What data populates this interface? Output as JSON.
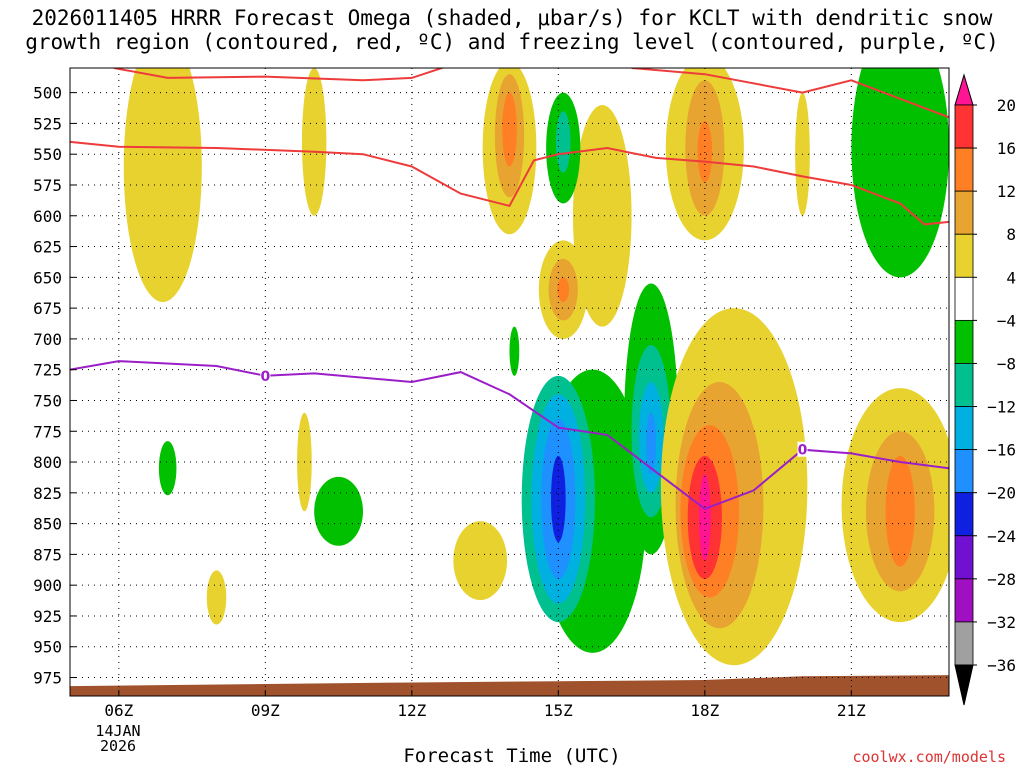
{
  "chart_data": {
    "type": "contour",
    "title_line1": "2026011405 HRRR Forecast Omega (shaded, μbar/s) for KCLT with dendritic snow",
    "title_line2": "growth region (contoured, red, ºC) and freezing level (contoured, purple, ºC)",
    "xlabel": "Forecast Time (UTC)",
    "credit": "coolwx.com/models",
    "x_ticks": [
      {
        "hour": 6,
        "label": "06Z"
      },
      {
        "hour": 9,
        "label": "09Z"
      },
      {
        "hour": 12,
        "label": "12Z"
      },
      {
        "hour": 15,
        "label": "15Z"
      },
      {
        "hour": 18,
        "label": "18Z"
      },
      {
        "hour": 21,
        "label": "21Z"
      }
    ],
    "date_label": [
      "14JAN",
      "2026"
    ],
    "x_range_hours": [
      5.0,
      23.0
    ],
    "y_ticks_hpa": [
      500,
      525,
      550,
      575,
      600,
      625,
      650,
      675,
      700,
      725,
      750,
      775,
      800,
      825,
      850,
      875,
      900,
      925,
      950,
      975
    ],
    "y_range_hpa": [
      480,
      990
    ],
    "colorbar": {
      "levels": [
        "20",
        "16",
        "12",
        "8",
        "4",
        "−4",
        "−8",
        "−12",
        "−16",
        "−20",
        "−24",
        "−28",
        "−32",
        "−36"
      ],
      "colors": [
        "#ff1493",
        "#ff3333",
        "#ff7f24",
        "#e8a430",
        "#e8d230",
        "#ffffff",
        "#00c000",
        "#00c090",
        "#00b0e0",
        "#1e90ff",
        "#1020e0",
        "#7010d0",
        "#a010c0",
        "#a0a0a0",
        "#000000"
      ]
    },
    "dgz_lines": [
      {
        "name": "upper -18C",
        "points": [
          [
            5.9,
            480
          ],
          [
            7.0,
            488
          ],
          [
            9.0,
            487
          ],
          [
            11.0,
            490
          ],
          [
            12.0,
            488
          ],
          [
            13.0,
            475
          ]
        ]
      },
      {
        "name": "upper -18C late",
        "points": [
          [
            16.5,
            480
          ],
          [
            18.0,
            485
          ],
          [
            20.0,
            500
          ],
          [
            21.0,
            490
          ],
          [
            23.0,
            520
          ]
        ]
      },
      {
        "name": "lower -12C",
        "points": [
          [
            5.0,
            540
          ],
          [
            6.0,
            544
          ],
          [
            8.0,
            545
          ],
          [
            10.0,
            548
          ],
          [
            11.0,
            550
          ],
          [
            12.0,
            560
          ],
          [
            13.0,
            582
          ],
          [
            14.0,
            592
          ],
          [
            14.5,
            555
          ],
          [
            15.0,
            550
          ],
          [
            16.0,
            545
          ],
          [
            17.0,
            553
          ],
          [
            18.0,
            556
          ],
          [
            19.0,
            560
          ],
          [
            20.0,
            568
          ],
          [
            21.0,
            575
          ],
          [
            22.0,
            590
          ],
          [
            22.5,
            607
          ],
          [
            23.0,
            605
          ]
        ]
      }
    ],
    "freezing_level": {
      "label": "0",
      "points": [
        [
          5.0,
          725
        ],
        [
          6.0,
          718
        ],
        [
          8.0,
          722
        ],
        [
          9.0,
          730
        ],
        [
          10.0,
          728
        ],
        [
          12.0,
          735
        ],
        [
          13.0,
          727
        ],
        [
          14.0,
          745
        ],
        [
          15.0,
          772
        ],
        [
          16.0,
          778
        ],
        [
          17.0,
          808
        ],
        [
          18.0,
          838
        ],
        [
          19.0,
          823
        ],
        [
          20.0,
          790
        ],
        [
          21.0,
          793
        ],
        [
          22.0,
          800
        ],
        [
          23.0,
          805
        ]
      ]
    },
    "surface_color": "#a0522d",
    "omega_regions": [
      {
        "level": 4,
        "center_hour": 6.9,
        "center_hpa": 560,
        "half_width_hours": 0.8,
        "half_depth_hpa": 110,
        "color": "#e8d230"
      },
      {
        "level": 4,
        "center_hour": 10.0,
        "center_hpa": 540,
        "half_width_hours": 0.25,
        "half_depth_hpa": 60,
        "color": "#e8d230"
      },
      {
        "level": 4,
        "center_hour": 14.0,
        "center_hpa": 545,
        "half_width_hours": 0.55,
        "half_depth_hpa": 70,
        "color": "#e8d230"
      },
      {
        "level": 8,
        "center_hour": 14.0,
        "center_hpa": 535,
        "half_width_hours": 0.3,
        "half_depth_hpa": 50,
        "color": "#e8a430"
      },
      {
        "level": 12,
        "center_hour": 14.0,
        "center_hpa": 530,
        "half_width_hours": 0.15,
        "half_depth_hpa": 30,
        "color": "#ff7f24"
      },
      {
        "level": 4,
        "center_hour": 15.9,
        "center_hpa": 600,
        "half_width_hours": 0.6,
        "half_depth_hpa": 90,
        "color": "#e8d230"
      },
      {
        "level": 4,
        "center_hour": 15.1,
        "center_hpa": 660,
        "half_width_hours": 0.5,
        "half_depth_hpa": 40,
        "color": "#e8d230"
      },
      {
        "level": 8,
        "center_hour": 15.1,
        "center_hpa": 660,
        "half_width_hours": 0.3,
        "half_depth_hpa": 25,
        "color": "#e8a430"
      },
      {
        "level": 12,
        "center_hour": 15.1,
        "center_hpa": 660,
        "half_width_hours": 0.12,
        "half_depth_hpa": 10,
        "color": "#ff7f24"
      },
      {
        "level": -4,
        "center_hour": 15.1,
        "center_hpa": 545,
        "half_width_hours": 0.35,
        "half_depth_hpa": 45,
        "color": "#00c000"
      },
      {
        "level": -8,
        "center_hour": 15.1,
        "center_hpa": 540,
        "half_width_hours": 0.15,
        "half_depth_hpa": 25,
        "color": "#00c090"
      },
      {
        "level": 4,
        "center_hour": 18.0,
        "center_hpa": 545,
        "half_width_hours": 0.8,
        "half_depth_hpa": 75,
        "color": "#e8d230"
      },
      {
        "level": 8,
        "center_hour": 18.0,
        "center_hpa": 545,
        "half_width_hours": 0.4,
        "half_depth_hpa": 55,
        "color": "#e8a430"
      },
      {
        "level": 12,
        "center_hour": 18.0,
        "center_hpa": 548,
        "half_width_hours": 0.15,
        "half_depth_hpa": 25,
        "color": "#ff7f24"
      },
      {
        "level": 4,
        "center_hour": 20.0,
        "center_hpa": 550,
        "half_width_hours": 0.15,
        "half_depth_hpa": 50,
        "color": "#e8d230"
      },
      {
        "level": -4,
        "center_hour": 22.0,
        "center_hpa": 545,
        "half_width_hours": 1.0,
        "half_depth_hpa": 105,
        "color": "#00c000"
      },
      {
        "level": 4,
        "center_hour": 9.8,
        "center_hpa": 800,
        "half_width_hours": 0.15,
        "half_depth_hpa": 40,
        "color": "#e8d230"
      },
      {
        "level": -4,
        "center_hour": 7.0,
        "center_hpa": 805,
        "half_width_hours": 0.18,
        "half_depth_hpa": 22,
        "color": "#00c000"
      },
      {
        "level": -4,
        "center_hour": 10.5,
        "center_hpa": 840,
        "half_width_hours": 0.5,
        "half_depth_hpa": 28,
        "color": "#00c000"
      },
      {
        "level": 4,
        "center_hour": 8.0,
        "center_hpa": 910,
        "half_width_hours": 0.2,
        "half_depth_hpa": 22,
        "color": "#e8d230"
      },
      {
        "level": 4,
        "center_hour": 13.4,
        "center_hpa": 880,
        "half_width_hours": 0.55,
        "half_depth_hpa": 32,
        "color": "#e8d230"
      },
      {
        "level": -4,
        "center_hour": 14.1,
        "center_hpa": 710,
        "half_width_hours": 0.1,
        "half_depth_hpa": 20,
        "color": "#00c000"
      },
      {
        "level": -4,
        "center_hour": 15.7,
        "center_hpa": 840,
        "half_width_hours": 1.1,
        "half_depth_hpa": 115,
        "color": "#00c000"
      },
      {
        "level": -8,
        "center_hour": 15.0,
        "center_hpa": 830,
        "half_width_hours": 0.75,
        "half_depth_hpa": 100,
        "color": "#00c090"
      },
      {
        "level": -12,
        "center_hour": 15.0,
        "center_hpa": 830,
        "half_width_hours": 0.55,
        "half_depth_hpa": 85,
        "color": "#00b0e0"
      },
      {
        "level": -16,
        "center_hour": 15.0,
        "center_hpa": 830,
        "half_width_hours": 0.35,
        "half_depth_hpa": 65,
        "color": "#1e90ff"
      },
      {
        "level": -20,
        "center_hour": 15.0,
        "center_hpa": 830,
        "half_width_hours": 0.15,
        "half_depth_hpa": 35,
        "color": "#1020e0"
      },
      {
        "level": -4,
        "center_hour": 16.9,
        "center_hpa": 765,
        "half_width_hours": 0.55,
        "half_depth_hpa": 110,
        "color": "#00c000"
      },
      {
        "level": -8,
        "center_hour": 16.9,
        "center_hpa": 775,
        "half_width_hours": 0.4,
        "half_depth_hpa": 70,
        "color": "#00c090"
      },
      {
        "level": -12,
        "center_hour": 16.9,
        "center_hpa": 780,
        "half_width_hours": 0.25,
        "half_depth_hpa": 45,
        "color": "#00b0e0"
      },
      {
        "level": -16,
        "center_hour": 16.9,
        "center_hpa": 785,
        "half_width_hours": 0.1,
        "half_depth_hpa": 25,
        "color": "#1e90ff"
      },
      {
        "level": 4,
        "center_hour": 18.6,
        "center_hpa": 820,
        "half_width_hours": 1.5,
        "half_depth_hpa": 145,
        "color": "#e8d230"
      },
      {
        "level": 8,
        "center_hour": 18.3,
        "center_hpa": 835,
        "half_width_hours": 0.9,
        "half_depth_hpa": 100,
        "color": "#e8a430"
      },
      {
        "level": 12,
        "center_hour": 18.1,
        "center_hpa": 840,
        "half_width_hours": 0.6,
        "half_depth_hpa": 70,
        "color": "#ff7f24"
      },
      {
        "level": 16,
        "center_hour": 18.0,
        "center_hpa": 845,
        "half_width_hours": 0.35,
        "half_depth_hpa": 50,
        "color": "#ff3333"
      },
      {
        "level": 20,
        "center_hour": 18.0,
        "center_hpa": 845,
        "half_width_hours": 0.12,
        "half_depth_hpa": 35,
        "color": "#ff1493"
      },
      {
        "level": 4,
        "center_hour": 22.0,
        "center_hpa": 835,
        "half_width_hours": 1.2,
        "half_depth_hpa": 95,
        "color": "#e8d230"
      },
      {
        "level": 8,
        "center_hour": 22.0,
        "center_hpa": 840,
        "half_width_hours": 0.7,
        "half_depth_hpa": 65,
        "color": "#e8a430"
      },
      {
        "level": 12,
        "center_hour": 22.0,
        "center_hpa": 840,
        "half_width_hours": 0.3,
        "half_depth_hpa": 45,
        "color": "#ff7f24"
      }
    ]
  }
}
